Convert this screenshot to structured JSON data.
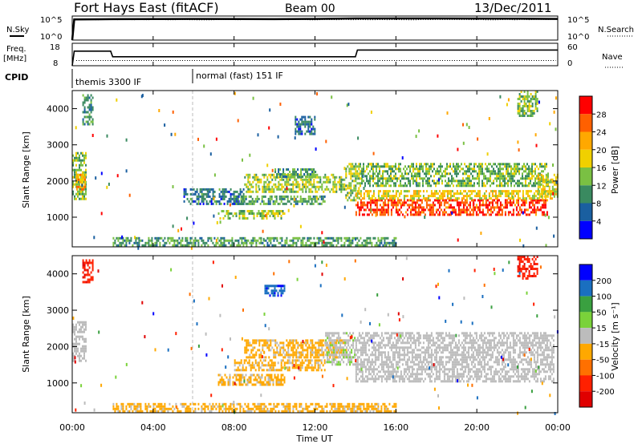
{
  "header": {
    "title": "Fort Hays East (fitACF)",
    "beam": "Beam 00",
    "date": "13/Dec/2011"
  },
  "strip_labels": {
    "nsky": "N.Sky",
    "nsearch": "N.Search",
    "freq": "Freq.",
    "freq_unit": "[MHz]",
    "nave": "Nave",
    "cpid": "CPID",
    "nsky_ticks": [
      "10^5",
      "10^0"
    ],
    "nsearch_ticks": [
      "10^5",
      "10^0"
    ],
    "freq_ticks": [
      "18",
      "8"
    ],
    "nave_ticks": [
      "60",
      "0"
    ]
  },
  "cpid_segments": [
    {
      "label": "themis 3300 IF",
      "start_hour": 0
    },
    {
      "label": "normal (fast) 151 IF",
      "start_hour": 6
    }
  ],
  "x_ticks": [
    "00:00",
    "04:00",
    "08:00",
    "12:00",
    "16:00",
    "20:00",
    "00:00"
  ],
  "x_label": "Time UT",
  "y_label": "Slant Range [km]",
  "y_ticks": [
    "1000",
    "2000",
    "3000",
    "4000"
  ],
  "power_colorbar": {
    "label": "Power [dB]",
    "ticks": [
      "28",
      "24",
      "20",
      "16",
      "12",
      "8",
      "4"
    ],
    "colors": [
      "#ff0000",
      "#ff6000",
      "#ffa800",
      "#f0d000",
      "#7ac043",
      "#3a8a60",
      "#1a5fa0",
      "#0000ff"
    ]
  },
  "velocity_colorbar": {
    "label": "Velocity [m s⁻¹]",
    "ticks": [
      "200",
      "100",
      "50",
      "15",
      "-15",
      "-50",
      "-100",
      "-200"
    ],
    "colors": [
      "#0000ff",
      "#1a6fc0",
      "#3aa040",
      "#7ad23a",
      "#bcbcbc",
      "#ffa800",
      "#ff7000",
      "#ff2000",
      "#e00000"
    ]
  },
  "chart_data": [
    {
      "type": "line",
      "title": "N.Sky / N.Search",
      "x_range_hours": [
        0,
        24
      ],
      "series": [
        {
          "name": "N.Sky",
          "x": [
            0,
            0.1,
            2,
            6,
            10,
            12,
            14,
            18,
            22,
            24
          ],
          "y_log": [
            0,
            4.3,
            4.35,
            4.4,
            4.35,
            4.4,
            4.5,
            4.5,
            4.45,
            4.4
          ]
        }
      ]
    },
    {
      "type": "line",
      "title": "Freq. / Nave",
      "x_range_hours": [
        0,
        24
      ],
      "series": [
        {
          "name": "Freq.",
          "x": [
            0,
            0.1,
            1.9,
            2,
            14,
            14.1,
            24
          ],
          "y": [
            8,
            14.5,
            14.5,
            12,
            12,
            15,
            15
          ]
        },
        {
          "name": "Nave",
          "x": [
            0,
            0.1,
            24
          ],
          "y": [
            0,
            14,
            14
          ]
        }
      ]
    },
    {
      "type": "heatmap",
      "title": "Power [dB]",
      "xlabel": "Time UT",
      "ylabel": "Slant Range [km]",
      "x_range_hours": [
        0,
        24
      ],
      "y_range_km": [
        180,
        4500
      ],
      "clim": [
        0,
        30
      ],
      "regions": [
        {
          "t0": 0.0,
          "t1": 0.7,
          "r0": 1500,
          "r1": 2800,
          "value": 12
        },
        {
          "t0": 0.2,
          "t1": 0.6,
          "r0": 1800,
          "r1": 2200,
          "value": 22
        },
        {
          "t0": 0.5,
          "t1": 1.0,
          "r0": 3600,
          "r1": 4400,
          "value": 8
        },
        {
          "t0": 5.5,
          "t1": 8.5,
          "r0": 1400,
          "r1": 1800,
          "value": 6
        },
        {
          "t0": 7.2,
          "t1": 10.5,
          "r0": 1000,
          "r1": 1200,
          "value": 14
        },
        {
          "t0": 8.0,
          "t1": 12.5,
          "r0": 1350,
          "r1": 1600,
          "value": 10
        },
        {
          "t0": 8.5,
          "t1": 13.5,
          "r0": 1700,
          "r1": 2200,
          "value": 14
        },
        {
          "t0": 10.0,
          "t1": 12.0,
          "r0": 2100,
          "r1": 2350,
          "value": 10
        },
        {
          "t0": 13.5,
          "t1": 14.2,
          "r0": 1500,
          "r1": 2500,
          "value": 14
        },
        {
          "t0": 14.0,
          "t1": 23.5,
          "r0": 1050,
          "r1": 1500,
          "value": 28
        },
        {
          "t0": 14.0,
          "t1": 23.8,
          "r0": 1500,
          "r1": 1750,
          "value": 18
        },
        {
          "t0": 14.2,
          "t1": 23.5,
          "r0": 1900,
          "r1": 2500,
          "value": 12
        },
        {
          "t0": 23.0,
          "t1": 24.0,
          "r0": 1600,
          "r1": 2200,
          "value": 16
        },
        {
          "t0": 11.0,
          "t1": 12.0,
          "r0": 3300,
          "r1": 3800,
          "value": 6
        },
        {
          "t0": 22.0,
          "t1": 23.0,
          "r0": 3800,
          "r1": 4500,
          "value": 12
        },
        {
          "t0": 2.0,
          "t1": 16.0,
          "r0": 200,
          "r1": 450,
          "value": 10
        }
      ]
    },
    {
      "type": "heatmap",
      "title": "Velocity [m s⁻¹]",
      "xlabel": "Time UT",
      "ylabel": "Slant Range [km]",
      "x_range_hours": [
        0,
        24
      ],
      "y_range_km": [
        180,
        4500
      ],
      "clim": [
        -250,
        250
      ],
      "regions": [
        {
          "t0": 0.0,
          "t1": 0.7,
          "r0": 1600,
          "r1": 2700,
          "value": 0
        },
        {
          "t0": 0.5,
          "t1": 1.0,
          "r0": 3800,
          "r1": 4400,
          "value": -200
        },
        {
          "t0": 7.2,
          "t1": 10.5,
          "r0": 950,
          "r1": 1250,
          "value": -50
        },
        {
          "t0": 8.0,
          "t1": 12.5,
          "r0": 1350,
          "r1": 1650,
          "value": -50
        },
        {
          "t0": 8.5,
          "t1": 13.5,
          "r0": 1700,
          "r1": 2200,
          "value": -50
        },
        {
          "t0": 12.5,
          "t1": 14.0,
          "r0": 1500,
          "r1": 2400,
          "value": 20
        },
        {
          "t0": 14.0,
          "t1": 23.8,
          "r0": 1050,
          "r1": 2400,
          "value": 0
        },
        {
          "t0": 9.5,
          "t1": 10.5,
          "r0": 3400,
          "r1": 3700,
          "value": 200
        },
        {
          "t0": 22.0,
          "t1": 23.0,
          "r0": 3900,
          "r1": 4500,
          "value": -200
        },
        {
          "t0": 2.0,
          "t1": 16.0,
          "r0": 200,
          "r1": 450,
          "value": -50
        }
      ]
    }
  ]
}
